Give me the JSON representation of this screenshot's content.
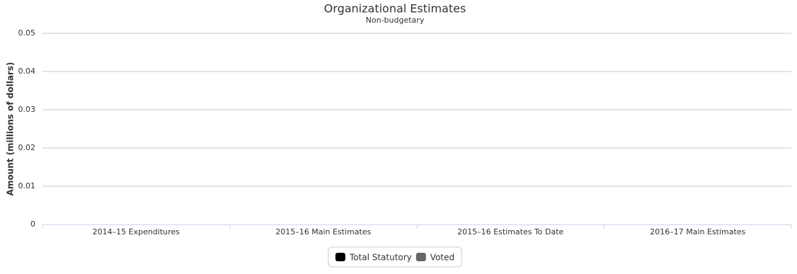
{
  "chart_data": {
    "type": "stacked_bar",
    "title": "Organizational Estimates",
    "subtitle": "Non-budgetary",
    "y_label": "Amount (millions of dollars)",
    "categories": [
      "2014–15 Expenditures",
      "2015–16 Main Estimates",
      "2015–16 Estimates To Date",
      "2016–17 Main Estimates"
    ],
    "series": [
      {
        "name": "Total Statutory",
        "color": "#000000",
        "values": [
          0,
          0,
          0,
          0
        ]
      },
      {
        "name": "Voted",
        "color": "#666666",
        "values": [
          0,
          0,
          0,
          0
        ]
      }
    ],
    "ylim": [
      0,
      0.05
    ],
    "yticks": [
      0,
      0.01,
      0.02,
      0.03,
      0.04,
      0.05
    ],
    "grid": true,
    "legend": "bottom"
  }
}
